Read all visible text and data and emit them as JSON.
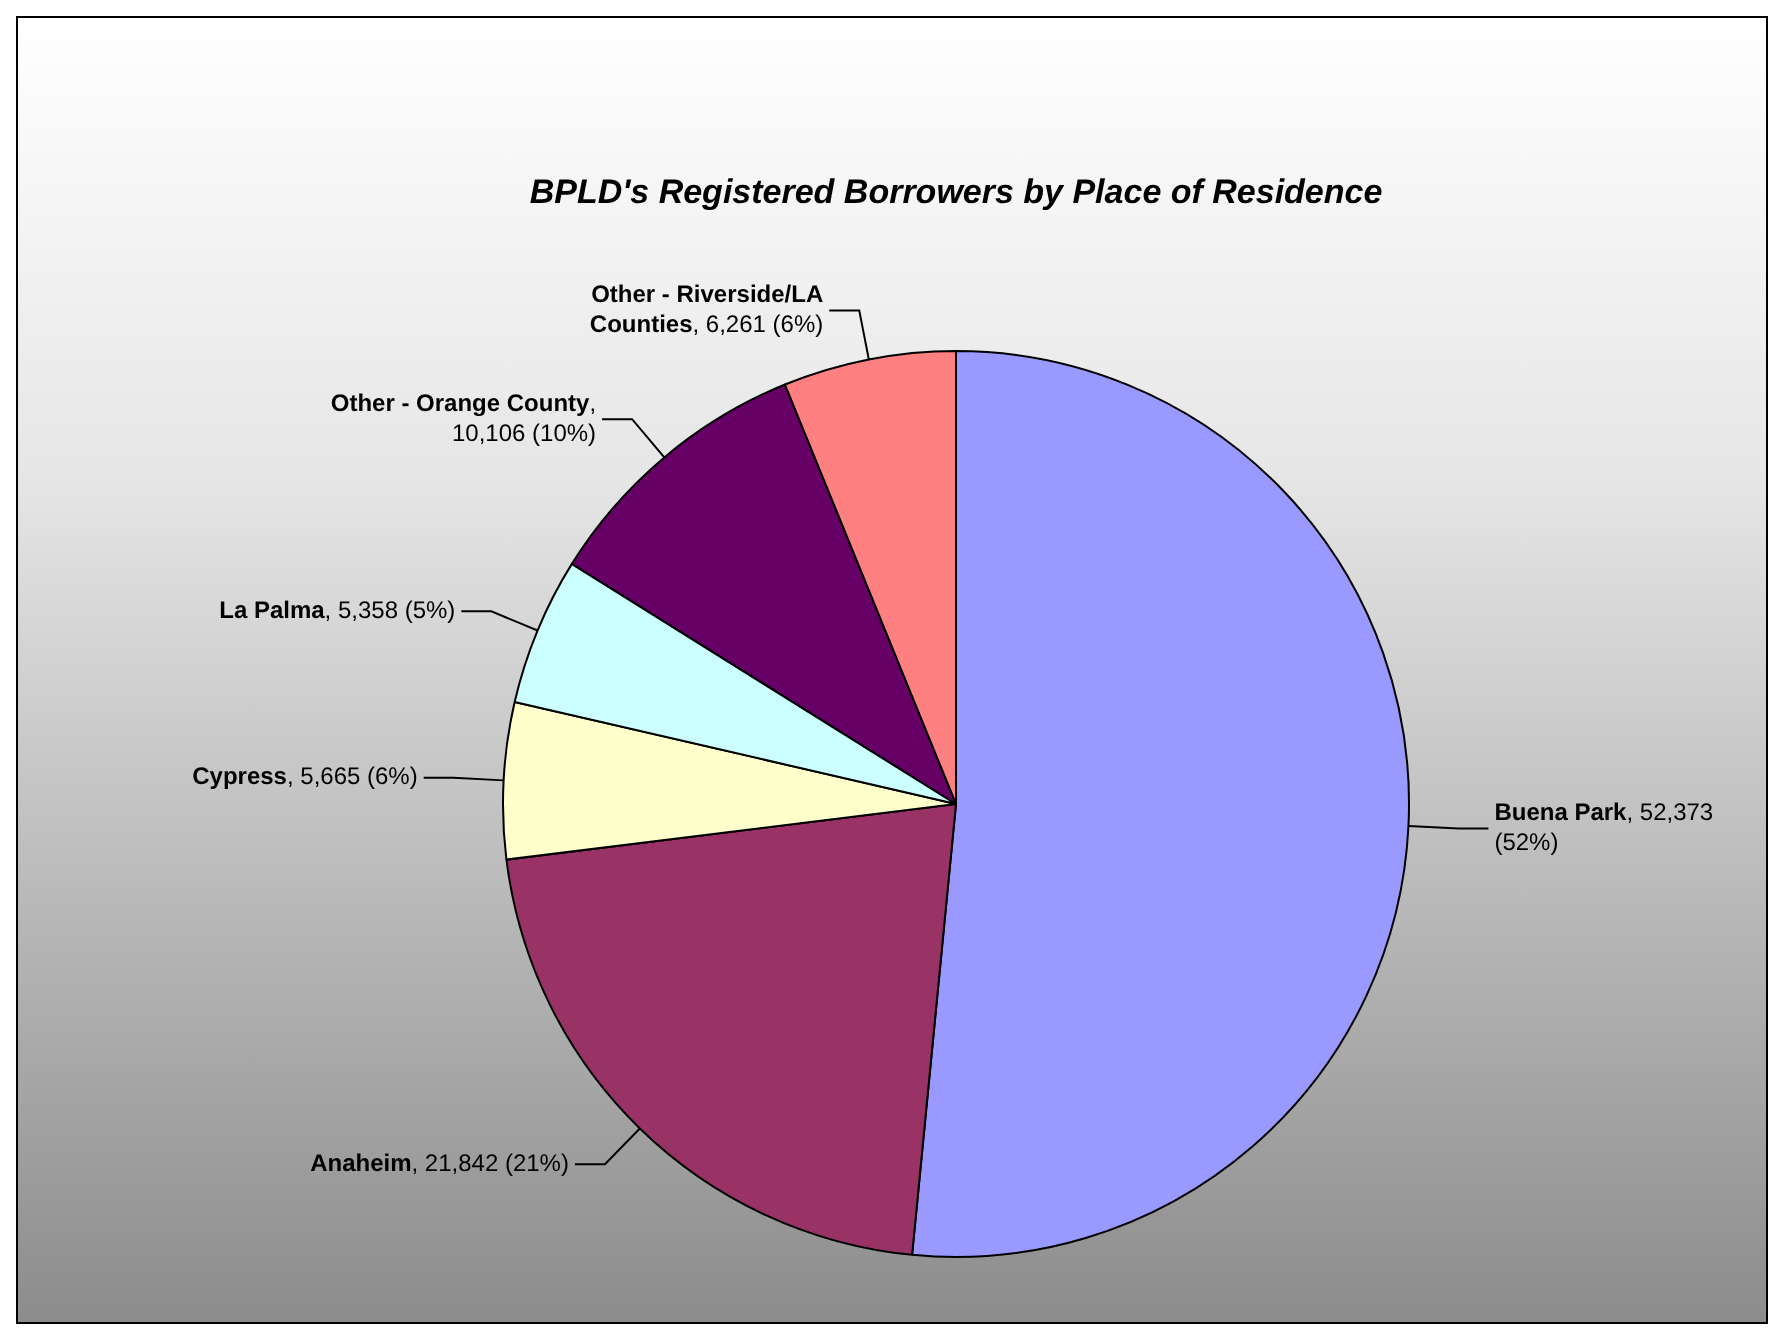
{
  "chart_data": {
    "type": "pie",
    "title": "BPLD's Registered Borrowers by Place of Residence",
    "categories": [
      "Buena Park",
      "Anaheim",
      "Cypress",
      "La Palma",
      "Other - Orange County",
      "Other - Riverside/LA Counties"
    ],
    "values": [
      52373,
      21842,
      5665,
      5358,
      10106,
      6261
    ],
    "colors": [
      "#9999ff",
      "#993366",
      "#ffffcc",
      "#ccffff",
      "#660066",
      "#ff8080"
    ],
    "value_labels": [
      ", 52,373 (52%)",
      ", 21,842 (21%)",
      ", 5,665 (6%)",
      ", 5,358 (5%)",
      ", 10,106 (10%)",
      ", 6,261 (6%)"
    ]
  }
}
